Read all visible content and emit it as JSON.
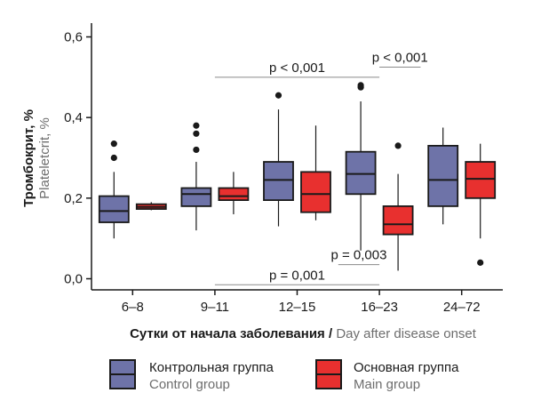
{
  "chart_data": {
    "type": "boxplot",
    "xlabel": {
      "ru": "Сутки от начала заболевания",
      "sep": " / ",
      "en": "Day after disease onset"
    },
    "ylabel": {
      "ru": "Тромбокрит, %",
      "en": "Plateletcrit, %"
    },
    "ylim": [
      0.0,
      0.6
    ],
    "y_ticks": [
      {
        "value": 0.0,
        "label": "0,0"
      },
      {
        "value": 0.2,
        "label": "0,2"
      },
      {
        "value": 0.4,
        "label": "0,4"
      },
      {
        "value": 0.6,
        "label": "0,6"
      }
    ],
    "categories": [
      "6–8",
      "9–11",
      "12–15",
      "16–23",
      "24–72"
    ],
    "series": [
      {
        "name": "Контрольная группа",
        "name_en": "Control group",
        "color": "#6e73a8",
        "boxes": [
          {
            "min": 0.1,
            "q1": 0.14,
            "median": 0.168,
            "q3": 0.205,
            "max": 0.265,
            "outliers": [
              0.3,
              0.335
            ]
          },
          {
            "min": 0.12,
            "q1": 0.18,
            "median": 0.21,
            "q3": 0.225,
            "max": 0.29,
            "outliers": [
              0.32,
              0.36,
              0.38
            ]
          },
          {
            "min": 0.13,
            "q1": 0.195,
            "median": 0.245,
            "q3": 0.29,
            "max": 0.42,
            "outliers": [
              0.455
            ]
          },
          {
            "min": 0.07,
            "q1": 0.21,
            "median": 0.26,
            "q3": 0.315,
            "max": 0.44,
            "outliers": [
              0.475,
              0.48
            ]
          },
          {
            "min": 0.135,
            "q1": 0.18,
            "median": 0.245,
            "q3": 0.33,
            "max": 0.375,
            "outliers": []
          }
        ]
      },
      {
        "name": "Основная группа",
        "name_en": "Main group",
        "color": "#e8302f",
        "boxes": [
          {
            "min": 0.17,
            "q1": 0.173,
            "median": 0.178,
            "q3": 0.185,
            "max": 0.19,
            "outliers": []
          },
          {
            "min": 0.16,
            "q1": 0.195,
            "median": 0.205,
            "q3": 0.225,
            "max": 0.265,
            "outliers": []
          },
          {
            "min": 0.145,
            "q1": 0.165,
            "median": 0.21,
            "q3": 0.265,
            "max": 0.38,
            "outliers": []
          },
          {
            "min": 0.02,
            "q1": 0.11,
            "median": 0.135,
            "q3": 0.18,
            "max": 0.26,
            "outliers": [
              0.33
            ]
          },
          {
            "min": 0.1,
            "q1": 0.2,
            "median": 0.248,
            "q3": 0.29,
            "max": 0.335,
            "outliers": [
              0.04
            ]
          }
        ]
      }
    ],
    "annotations": [
      {
        "text": "p < 0,001",
        "from": 1,
        "to": 3,
        "y": 0.5
      },
      {
        "text": "p < 0,001",
        "from": 3,
        "to": 3.5,
        "y": 0.525
      },
      {
        "text": "p = 0,001",
        "from": 1,
        "to": 3,
        "y": -0.015
      },
      {
        "text": "p = 0,003",
        "from": 2.5,
        "to": 3,
        "y": 0.035
      }
    ],
    "legend": {
      "position": "bottom"
    }
  }
}
